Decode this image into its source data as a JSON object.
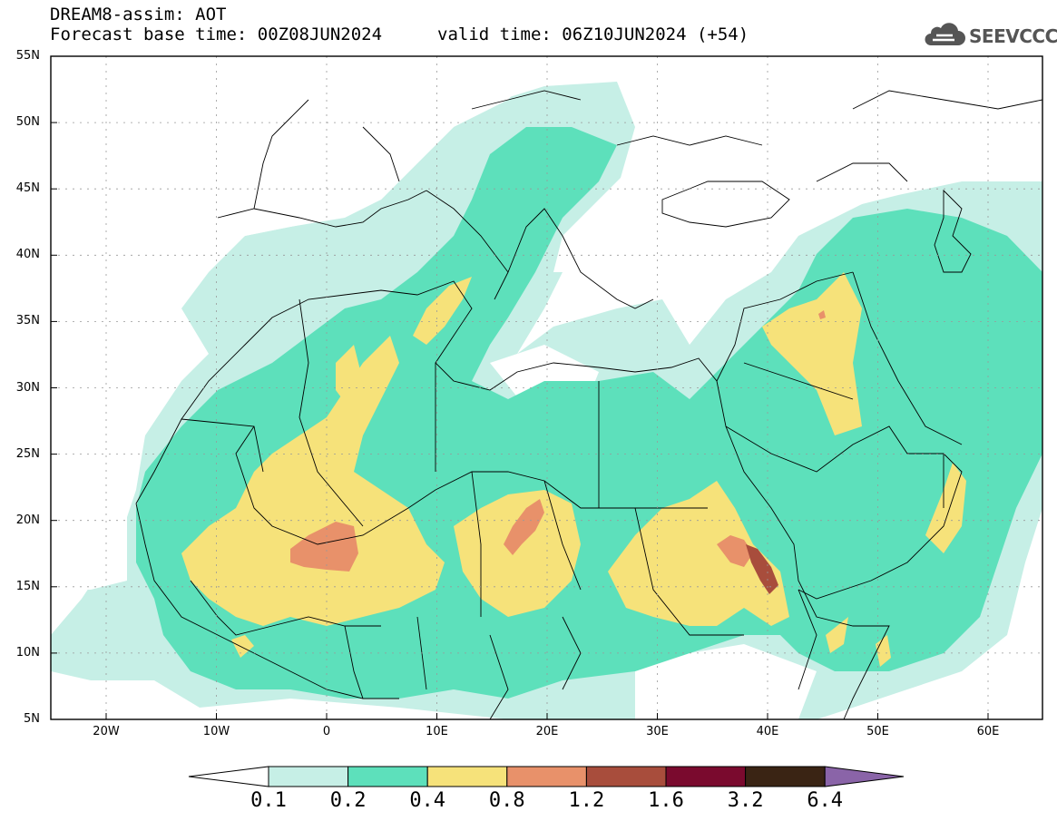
{
  "header": {
    "title": "DREAM8-assim: AOT",
    "base_time": "Forecast base time: 00Z08JUN2024",
    "valid_time": "valid time: 06Z10JUN2024 (+54)"
  },
  "logo": {
    "text": "SEEVCCC",
    "icon": "cloud-logo-icon"
  },
  "map": {
    "lat_labels": [
      "55N",
      "50N",
      "45N",
      "40N",
      "35N",
      "30N",
      "25N",
      "20N",
      "15N",
      "10N",
      "5N"
    ],
    "lon_labels": [
      "20W",
      "10W",
      "0",
      "10E",
      "20E",
      "30E",
      "40E",
      "50E",
      "60E"
    ],
    "grid": true
  },
  "colorbar": {
    "labels": [
      "0.1",
      "0.2",
      "0.4",
      "0.8",
      "1.2",
      "1.6",
      "3.2",
      "6.4"
    ],
    "colors": [
      "#ffffff",
      "#c6efe6",
      "#5de0bb",
      "#f6e27a",
      "#e8916a",
      "#a84d3c",
      "#7a0a2e",
      "#3a2414",
      "#8a64a8"
    ]
  },
  "colors": {
    "level_0_1": "#c6efe6",
    "level_0_2": "#5de0bb",
    "level_0_4": "#f6e27a",
    "level_0_8": "#e8916a",
    "level_1_2": "#a84d3c"
  }
}
